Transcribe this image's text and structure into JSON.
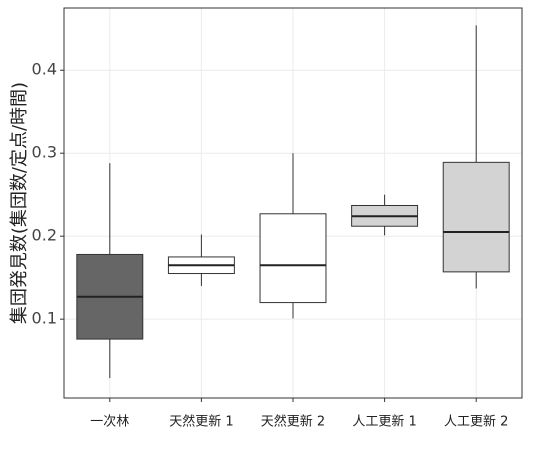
{
  "chart_data": {
    "type": "box",
    "y_label": "集団発見数(集団数/定点/時間)",
    "categories": [
      "一次林",
      "天然更新 1",
      "天然更新 2",
      "人工更新 1",
      "人工更新 2"
    ],
    "boxes": [
      {
        "whisker_low": 0.029,
        "q1": 0.076,
        "median": 0.127,
        "q3": 0.178,
        "whisker_high": 0.288,
        "color": "#666666"
      },
      {
        "whisker_low": 0.14,
        "q1": 0.155,
        "median": 0.165,
        "q3": 0.175,
        "whisker_high": 0.202,
        "color": "#ffffff"
      },
      {
        "whisker_low": 0.101,
        "q1": 0.12,
        "median": 0.165,
        "q3": 0.227,
        "whisker_high": 0.3,
        "color": "#ffffff"
      },
      {
        "whisker_low": 0.201,
        "q1": 0.212,
        "median": 0.224,
        "q3": 0.237,
        "whisker_high": 0.25,
        "color": "#d3d3d3"
      },
      {
        "whisker_low": 0.137,
        "q1": 0.157,
        "median": 0.205,
        "q3": 0.289,
        "whisker_high": 0.454,
        "color": "#d3d3d3"
      }
    ],
    "ylim": [
      0.005,
      0.475
    ],
    "yticks": [
      0.1,
      0.2,
      0.3,
      0.4
    ],
    "grid": true
  }
}
